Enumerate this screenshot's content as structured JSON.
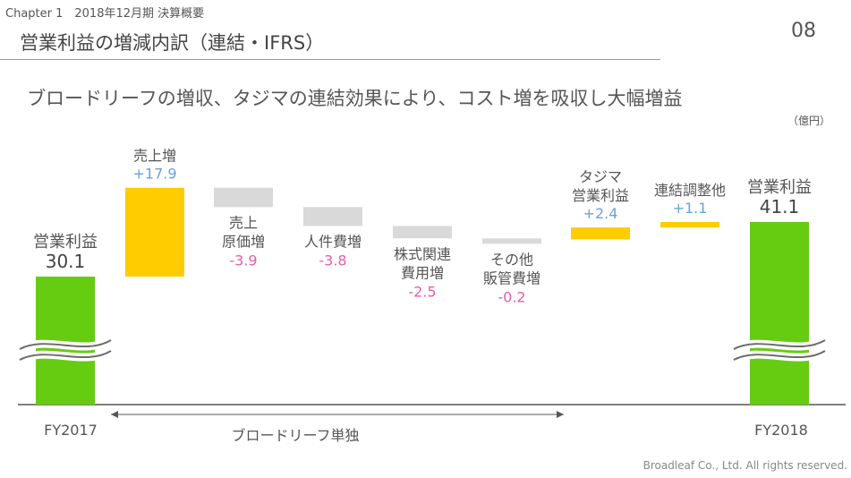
{
  "header": {
    "chapter": "Chapter 1　2018年12月期 決算概要",
    "title": "営業利益の増減内訳（連結・IFRS）",
    "page_number": "08"
  },
  "subtitle": "ブロードリーフの増収、タジマの連結効果により、コスト増を吸収し大幅増益",
  "unit_label": "（億円）",
  "footer": "Broadleaf Co., Ltd. All rights reserved.",
  "range_label": "ブロードリーフ単独",
  "colors": {
    "total": "#66cc11",
    "increase": "#ffcc00",
    "decrease": "#d9d9d9",
    "positive_text": "#66a3e0",
    "negative_text": "#e55fa6"
  },
  "chart_data": {
    "type": "bar",
    "subtype": "waterfall",
    "categories": [
      "FY2017",
      "売上増",
      "売上原価増",
      "人件費増",
      "株式関連費用増",
      "その他販管費増",
      "タジマ営業利益",
      "連結調整他",
      "FY2018"
    ],
    "values": [
      30.1,
      17.9,
      -3.9,
      -3.8,
      -2.5,
      -0.2,
      2.4,
      1.1,
      41.1
    ],
    "bars": [
      {
        "kind": "total",
        "label_lines": [
          "営業利益"
        ],
        "value_text": "30.1",
        "axis_label": "FY2017",
        "value": 30.1
      },
      {
        "kind": "increase",
        "label_lines": [
          "売上増"
        ],
        "value_text": "+17.9",
        "value": 17.9
      },
      {
        "kind": "decrease",
        "label_lines": [
          "売上",
          "原価増"
        ],
        "value_text": "-3.9",
        "value": -3.9
      },
      {
        "kind": "decrease",
        "label_lines": [
          "人件費増"
        ],
        "value_text": "-3.8",
        "value": -3.8
      },
      {
        "kind": "decrease",
        "label_lines": [
          "株式関連",
          "費用増"
        ],
        "value_text": "-2.5",
        "value": -2.5
      },
      {
        "kind": "decrease",
        "label_lines": [
          "その他",
          "販管費増"
        ],
        "value_text": "-0.2",
        "value": -0.2
      },
      {
        "kind": "increase",
        "label_lines": [
          "タジマ",
          "営業利益"
        ],
        "value_text": "+2.4",
        "value": 2.4
      },
      {
        "kind": "increase",
        "label_lines": [
          "連結調整他"
        ],
        "value_text": "+1.1",
        "value": 1.1
      },
      {
        "kind": "total",
        "label_lines": [
          "営業利益"
        ],
        "value_text": "41.1",
        "axis_label": "FY2018",
        "value": 41.1
      }
    ],
    "axis_break": true
  }
}
